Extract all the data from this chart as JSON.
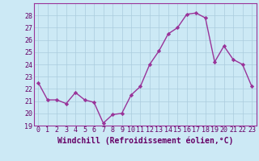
{
  "x": [
    0,
    1,
    2,
    3,
    4,
    5,
    6,
    7,
    8,
    9,
    10,
    11,
    12,
    13,
    14,
    15,
    16,
    17,
    18,
    19,
    20,
    21,
    22,
    23
  ],
  "y": [
    22.5,
    21.1,
    21.1,
    20.8,
    21.7,
    21.1,
    20.9,
    19.2,
    19.9,
    20.0,
    21.5,
    22.2,
    24.0,
    25.1,
    26.5,
    27.0,
    28.1,
    28.2,
    27.8,
    24.2,
    25.5,
    24.4,
    24.0,
    22.2
  ],
  "line_color": "#993399",
  "marker": "D",
  "marker_size": 2.2,
  "linewidth": 1.0,
  "bg_color": "#cce9f5",
  "plot_bg_color": "#cce9f5",
  "grid_color": "#aaccdd",
  "spine_color": "#993399",
  "xlabel": "Windchill (Refroidissement éolien,°C)",
  "xlabel_fontsize": 7,
  "tick_fontsize": 6,
  "tick_color": "#660066",
  "ylim": [
    19,
    29
  ],
  "yticks": [
    19,
    20,
    21,
    22,
    23,
    24,
    25,
    26,
    27,
    28
  ],
  "xticks": [
    0,
    1,
    2,
    3,
    4,
    5,
    6,
    7,
    8,
    9,
    10,
    11,
    12,
    13,
    14,
    15,
    16,
    17,
    18,
    19,
    20,
    21,
    22,
    23
  ],
  "xlim": [
    -0.5,
    23.5
  ]
}
